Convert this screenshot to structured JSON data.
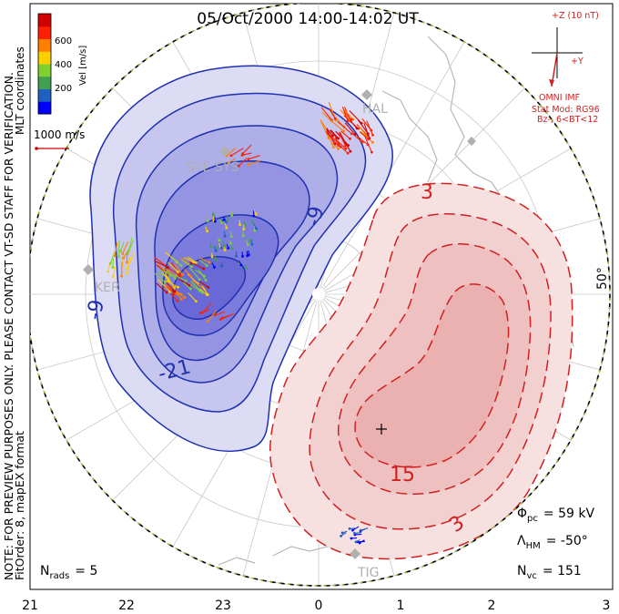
{
  "title": "05/Oct/2000 14:00-14:02 UT",
  "side_note": "NOTE: FOR PREVIEW PURPOSES ONLY. PLEASE CONTACT VT-SD STAFF FOR VERIFICATION.",
  "side_fit": "FitOrder: 8, mapEX format",
  "side_coords": "MLT coordinates",
  "colorbar": {
    "label": "Vel [m/s]",
    "ticks": [
      "600",
      "400",
      "200"
    ],
    "colors": [
      "#0000ff",
      "#2060c0",
      "#40a050",
      "#80d030",
      "#ffd000",
      "#ff8000",
      "#ff2000",
      "#d00000"
    ]
  },
  "scale_label": "1000 m/s",
  "imf": {
    "z_label": "+Z (10 nT)",
    "y_label": "+Y",
    "omni": "OMNI IMF",
    "stat_mod": "Stat Mod: RG96",
    "condition": "Bz-, 6<BT<12"
  },
  "contours": {
    "neg_labels": [
      "-9",
      "-21",
      "-9"
    ],
    "pos_labels": [
      "3",
      "15",
      "3"
    ],
    "neg_color": "#2030b0",
    "pos_color": "#d02020"
  },
  "radars": [
    "HAL",
    "SYE",
    "SYS",
    "KER",
    "TIG"
  ],
  "lat_label": "50°",
  "stats": {
    "phi_pc": "= 59 kV",
    "lambda_hm": "= -50°",
    "n_vc": "= 151",
    "n_rads": "= 5"
  },
  "mlt_ticks": [
    "21",
    "22",
    "23",
    "0",
    "1",
    "2",
    "3"
  ]
}
